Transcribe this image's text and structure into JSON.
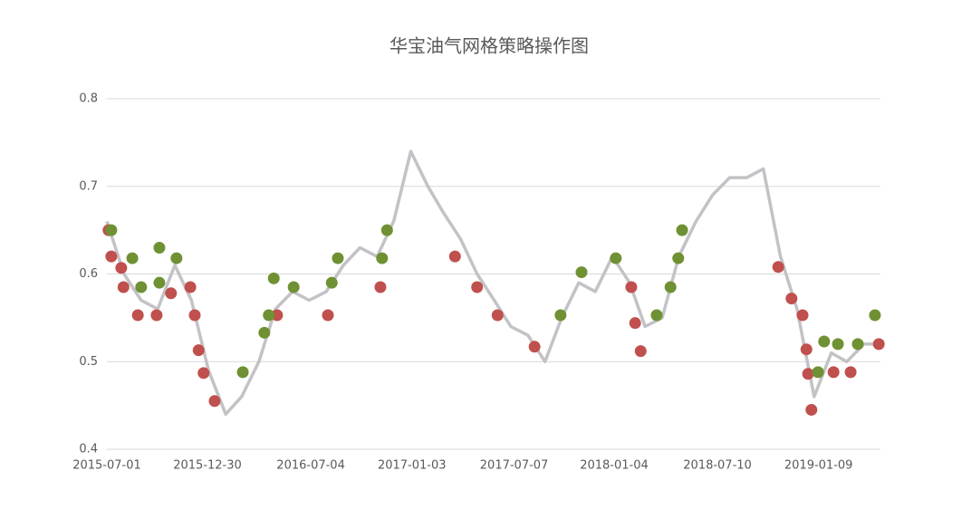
{
  "chart_data": {
    "type": "line",
    "title": "华宝油气网格策略操作图",
    "xlim": [
      "2015-07-01",
      "2019-05-01"
    ],
    "xticks": [
      "2015-07-01",
      "2015-12-30",
      "2016-07-04",
      "2017-01-03",
      "2017-07-07",
      "2018-01-04",
      "2018-07-10",
      "2019-01-09"
    ],
    "ylim": [
      0.4,
      0.8
    ],
    "yticks": [
      0.4,
      0.5,
      0.6,
      0.7,
      0.8
    ],
    "grid": true,
    "series": [
      {
        "style": "line",
        "color": "#c3c2c6",
        "x": [
          "2015-07-01",
          "2015-08-01",
          "2015-09-01",
          "2015-10-01",
          "2015-11-01",
          "2015-12-01",
          "2016-01-01",
          "2016-02-01",
          "2016-03-01",
          "2016-04-01",
          "2016-05-01",
          "2016-06-01",
          "2016-07-01",
          "2016-08-01",
          "2016-09-01",
          "2016-10-01",
          "2016-11-01",
          "2016-12-01",
          "2017-01-01",
          "2017-02-01",
          "2017-03-01",
          "2017-04-01",
          "2017-05-01",
          "2017-06-01",
          "2017-07-01",
          "2017-08-01",
          "2017-09-01",
          "2017-10-01",
          "2017-11-01",
          "2017-12-01",
          "2018-01-01",
          "2018-02-01",
          "2018-03-01",
          "2018-04-01",
          "2018-05-01",
          "2018-06-01",
          "2018-07-01",
          "2018-08-01",
          "2018-09-01",
          "2018-10-01",
          "2018-11-01",
          "2018-12-01",
          "2019-01-01",
          "2019-02-01",
          "2019-03-01",
          "2019-04-01",
          "2019-05-01"
        ],
        "values": [
          0.66,
          0.6,
          0.57,
          0.56,
          0.61,
          0.57,
          0.49,
          0.44,
          0.46,
          0.5,
          0.56,
          0.58,
          0.57,
          0.58,
          0.61,
          0.63,
          0.62,
          0.66,
          0.74,
          0.7,
          0.67,
          0.64,
          0.6,
          0.57,
          0.54,
          0.53,
          0.5,
          0.55,
          0.59,
          0.58,
          0.62,
          0.59,
          0.54,
          0.55,
          0.62,
          0.66,
          0.69,
          0.71,
          0.71,
          0.72,
          0.62,
          0.56,
          0.46,
          0.51,
          0.5,
          0.52,
          0.52
        ]
      },
      {
        "style": "marker",
        "color": "#c0504d",
        "x": [
          "2015-07-04",
          "2015-07-09",
          "2015-07-27",
          "2015-07-31",
          "2015-08-26",
          "2015-09-29",
          "2015-10-25",
          "2015-11-29",
          "2015-12-07",
          "2015-12-14",
          "2015-12-23",
          "2016-01-12",
          "2016-05-04",
          "2016-08-04",
          "2016-11-07",
          "2017-03-22",
          "2017-05-01",
          "2017-06-07",
          "2017-08-13",
          "2018-02-04",
          "2018-02-11",
          "2018-02-21",
          "2018-10-28",
          "2018-11-21",
          "2018-12-11",
          "2018-12-18",
          "2018-12-21",
          "2018-12-27",
          "2019-02-05",
          "2019-03-08",
          "2019-04-28"
        ],
        "values": [
          0.65,
          0.62,
          0.607,
          0.585,
          0.553,
          0.553,
          0.578,
          0.585,
          0.553,
          0.513,
          0.487,
          0.455,
          0.553,
          0.553,
          0.585,
          0.62,
          0.585,
          0.553,
          0.517,
          0.585,
          0.544,
          0.512,
          0.608,
          0.572,
          0.553,
          0.514,
          0.486,
          0.445,
          0.488,
          0.488,
          0.52
        ]
      },
      {
        "style": "marker",
        "color": "#6f9133",
        "x": [
          "2015-07-09",
          "2015-08-16",
          "2015-09-01",
          "2015-10-04",
          "2015-10-04",
          "2015-11-04",
          "2016-03-03",
          "2016-04-11",
          "2016-04-19",
          "2016-04-28",
          "2016-06-03",
          "2016-08-11",
          "2016-08-22",
          "2016-11-10",
          "2016-11-19",
          "2017-09-29",
          "2017-11-06",
          "2018-01-07",
          "2018-03-22",
          "2018-04-16",
          "2018-04-30",
          "2018-05-07",
          "2019-01-08",
          "2019-01-19",
          "2019-02-13",
          "2019-03-21",
          "2019-04-21"
        ],
        "values": [
          0.65,
          0.618,
          0.585,
          0.63,
          0.59,
          0.618,
          0.488,
          0.533,
          0.553,
          0.595,
          0.585,
          0.59,
          0.618,
          0.618,
          0.65,
          0.553,
          0.602,
          0.618,
          0.553,
          0.585,
          0.618,
          0.65,
          0.488,
          0.523,
          0.52,
          0.52,
          0.553
        ]
      }
    ]
  }
}
